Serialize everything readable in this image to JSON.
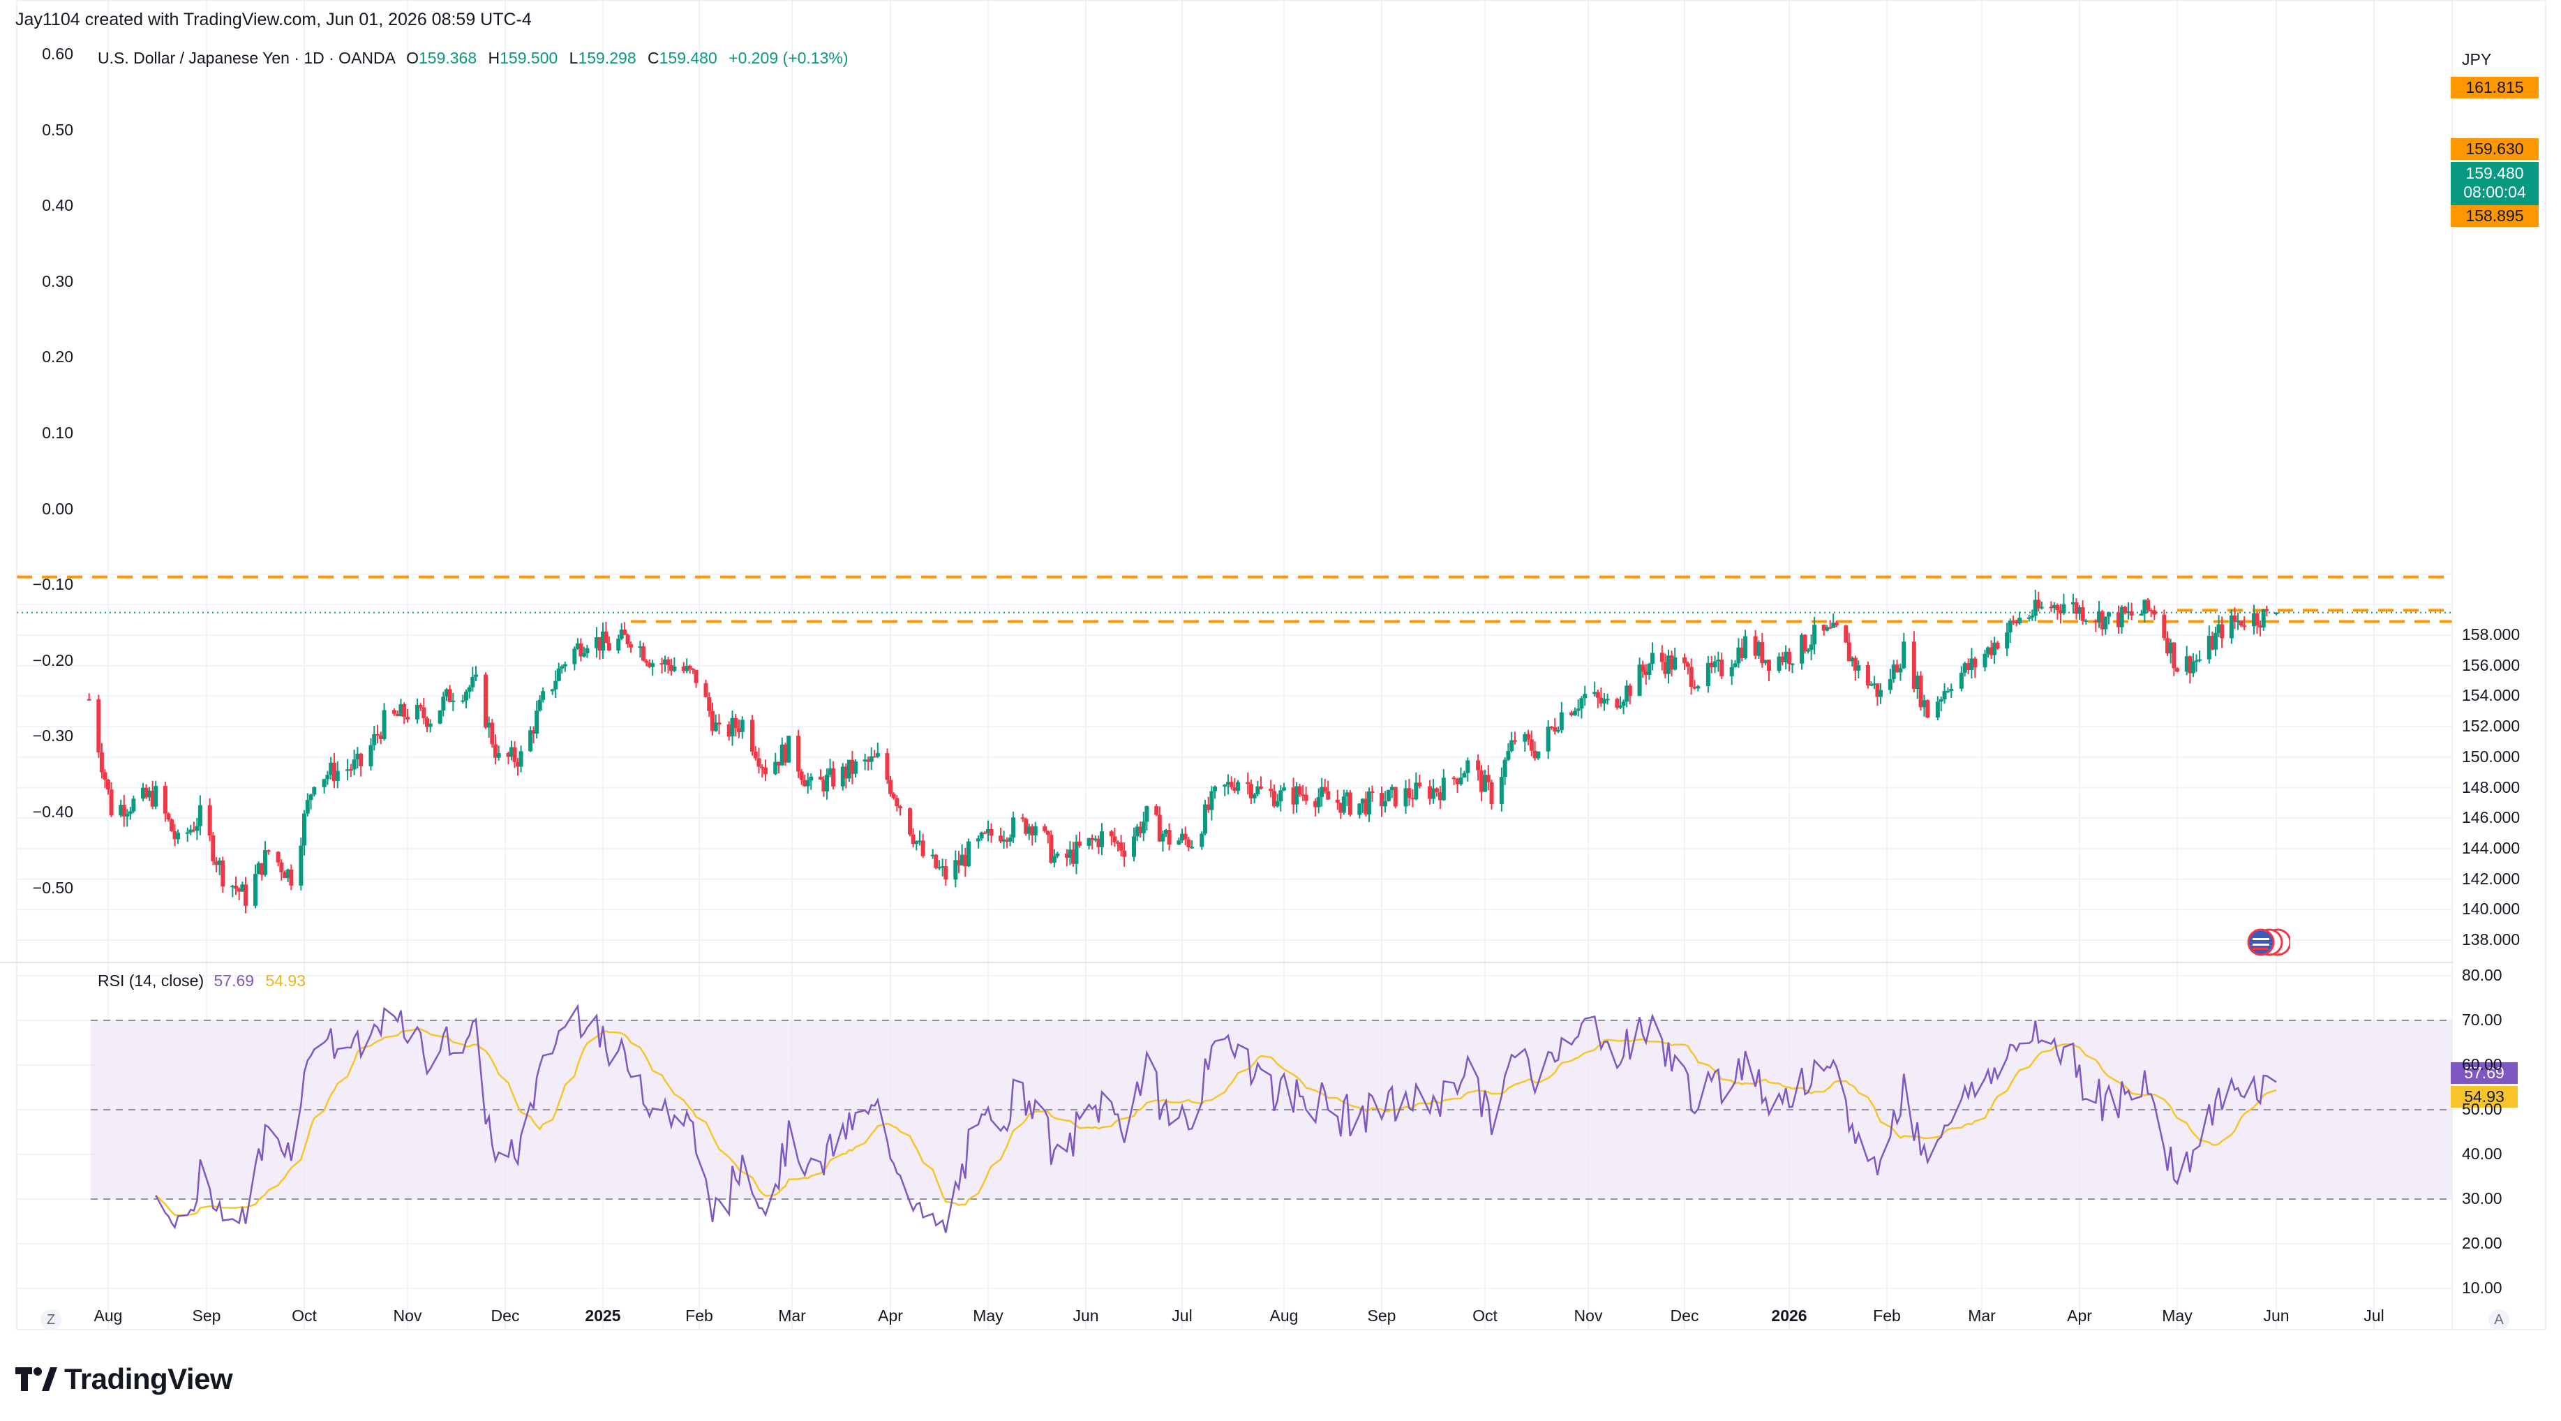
{
  "header": {
    "author_line": "Jay1104 created with TradingView.com, Jun 01, 2026 08:59 UTC-4"
  },
  "legend": {
    "symbol": "U.S. Dollar / Japanese Yen · 1D · OANDA",
    "o_label": "O",
    "o_value": "159.368",
    "h_label": "H",
    "h_value": "159.500",
    "l_label": "L",
    "l_value": "159.298",
    "c_label": "C",
    "c_value": "159.480",
    "change": "+0.209 (+0.13%)"
  },
  "currency": "JPY",
  "price_tags": {
    "level_top": "161.815",
    "level_upper": "159.630",
    "last_price": "159.480",
    "countdown": "08:00:04",
    "level_lower": "158.895"
  },
  "rsi_legend": {
    "label": "RSI (14, close)",
    "rsi_value": "57.69",
    "ma_value": "54.93"
  },
  "footer": {
    "brand": "TradingView",
    "zoom_button": "Z",
    "auto_button": "A"
  },
  "colors": {
    "up": "#089981",
    "down": "#f23645",
    "level_line": "#ff9800",
    "rsi_line": "#7e57c2",
    "rsi_ma": "#f7c52a",
    "rsi_band": "#ede7f6"
  },
  "chart_data": [
    {
      "type": "candlestick",
      "title": "",
      "y_unit": "JPY",
      "ylim": [
        137.5,
        163.0
      ],
      "right_axis_ticks": [
        "138.000",
        "140.000",
        "142.000",
        "144.000",
        "146.000",
        "148.000",
        "150.000",
        "152.000",
        "154.000",
        "156.000",
        "158.000"
      ],
      "left_axis_ticks": [
        "0.60",
        "0.50",
        "0.40",
        "0.30",
        "0.20",
        "0.10",
        "0.00",
        "−0.10",
        "−0.20",
        "−0.30",
        "−0.40",
        "−0.50"
      ],
      "x_ticks": [
        {
          "label": "Aug",
          "i": 0
        },
        {
          "label": "Sep",
          "i": 1
        },
        {
          "label": "Oct",
          "i": 2
        },
        {
          "label": "Nov",
          "i": 3
        },
        {
          "label": "Dec",
          "i": 4
        },
        {
          "label": "2025",
          "i": 5
        },
        {
          "label": "Feb",
          "i": 6
        },
        {
          "label": "Mar",
          "i": 7
        },
        {
          "label": "Apr",
          "i": 8
        },
        {
          "label": "May",
          "i": 9
        },
        {
          "label": "Jun",
          "i": 10
        },
        {
          "label": "Jul",
          "i": 11
        },
        {
          "label": "Aug",
          "i": 12
        },
        {
          "label": "Sep",
          "i": 13
        },
        {
          "label": "Oct",
          "i": 14
        },
        {
          "label": "Nov",
          "i": 15
        },
        {
          "label": "Dec",
          "i": 16
        },
        {
          "label": "2026",
          "i": 17
        },
        {
          "label": "Feb",
          "i": 18
        },
        {
          "label": "Mar",
          "i": 19
        },
        {
          "label": "Apr",
          "i": 20
        },
        {
          "label": "May",
          "i": 21
        },
        {
          "label": "Jun",
          "i": 22
        },
        {
          "label": "Jul",
          "i": 23
        }
      ],
      "horizontal_levels": [
        161.815,
        159.63,
        158.895
      ],
      "last_close": 159.48,
      "weekly_closes": [
        {
          "date": "2024-07-26",
          "close": 153.8
        },
        {
          "date": "2024-08-02",
          "close": 146.6
        },
        {
          "date": "2024-08-09",
          "close": 147.0
        },
        {
          "date": "2024-08-16",
          "close": 147.5
        },
        {
          "date": "2024-08-23",
          "close": 144.3
        },
        {
          "date": "2024-08-30",
          "close": 146.1
        },
        {
          "date": "2024-09-06",
          "close": 142.3
        },
        {
          "date": "2024-09-13",
          "close": 140.8
        },
        {
          "date": "2024-09-20",
          "close": 143.8
        },
        {
          "date": "2024-09-27",
          "close": 142.2
        },
        {
          "date": "2024-10-04",
          "close": 148.7
        },
        {
          "date": "2024-10-11",
          "close": 149.1
        },
        {
          "date": "2024-10-18",
          "close": 149.5
        },
        {
          "date": "2024-10-25",
          "close": 152.3
        },
        {
          "date": "2024-11-01",
          "close": 152.9
        },
        {
          "date": "2024-11-08",
          "close": 152.6
        },
        {
          "date": "2024-11-15",
          "close": 154.3
        },
        {
          "date": "2024-11-22",
          "close": 154.7
        },
        {
          "date": "2024-11-29",
          "close": 149.8
        },
        {
          "date": "2024-12-06",
          "close": 150.0
        },
        {
          "date": "2024-12-13",
          "close": 153.7
        },
        {
          "date": "2024-12-20",
          "close": 156.4
        },
        {
          "date": "2024-12-27",
          "close": 157.8
        },
        {
          "date": "2025-01-03",
          "close": 157.3
        },
        {
          "date": "2025-01-10",
          "close": 157.9
        },
        {
          "date": "2025-01-17",
          "close": 156.3
        },
        {
          "date": "2025-01-24",
          "close": 156.0
        },
        {
          "date": "2025-01-31",
          "close": 155.2
        },
        {
          "date": "2025-02-07",
          "close": 151.4
        },
        {
          "date": "2025-02-14",
          "close": 152.3
        },
        {
          "date": "2025-02-21",
          "close": 149.3
        },
        {
          "date": "2025-02-28",
          "close": 150.6
        },
        {
          "date": "2025-03-07",
          "close": 148.0
        },
        {
          "date": "2025-03-14",
          "close": 148.6
        },
        {
          "date": "2025-03-21",
          "close": 149.3
        },
        {
          "date": "2025-03-28",
          "close": 149.8
        },
        {
          "date": "2025-04-04",
          "close": 146.9
        },
        {
          "date": "2025-04-11",
          "close": 143.5
        },
        {
          "date": "2025-04-18",
          "close": 142.2
        },
        {
          "date": "2025-04-25",
          "close": 143.7
        },
        {
          "date": "2025-05-02",
          "close": 144.9
        },
        {
          "date": "2025-05-09",
          "close": 145.4
        },
        {
          "date": "2025-05-16",
          "close": 145.7
        },
        {
          "date": "2025-05-23",
          "close": 143.0
        },
        {
          "date": "2025-05-30",
          "close": 143.9
        },
        {
          "date": "2025-06-06",
          "close": 144.8
        },
        {
          "date": "2025-06-13",
          "close": 144.1
        },
        {
          "date": "2025-06-20",
          "close": 146.1
        },
        {
          "date": "2025-06-27",
          "close": 144.6
        },
        {
          "date": "2025-07-04",
          "close": 144.5
        },
        {
          "date": "2025-07-11",
          "close": 147.4
        },
        {
          "date": "2025-07-18",
          "close": 148.6
        },
        {
          "date": "2025-07-25",
          "close": 147.7
        },
        {
          "date": "2025-08-01",
          "close": 147.4
        },
        {
          "date": "2025-08-08",
          "close": 147.7
        },
        {
          "date": "2025-08-15",
          "close": 147.2
        },
        {
          "date": "2025-08-22",
          "close": 146.9
        },
        {
          "date": "2025-08-29",
          "close": 147.0
        },
        {
          "date": "2025-09-05",
          "close": 147.4
        },
        {
          "date": "2025-09-12",
          "close": 147.7
        },
        {
          "date": "2025-09-19",
          "close": 148.0
        },
        {
          "date": "2025-09-26",
          "close": 149.5
        },
        {
          "date": "2025-10-03",
          "close": 147.5
        },
        {
          "date": "2025-10-10",
          "close": 151.2
        },
        {
          "date": "2025-10-17",
          "close": 150.4
        },
        {
          "date": "2025-10-24",
          "close": 152.9
        },
        {
          "date": "2025-10-31",
          "close": 154.0
        },
        {
          "date": "2025-11-07",
          "close": 153.4
        },
        {
          "date": "2025-11-14",
          "close": 154.6
        },
        {
          "date": "2025-11-21",
          "close": 156.4
        },
        {
          "date": "2025-11-28",
          "close": 156.1
        },
        {
          "date": "2025-12-05",
          "close": 155.1
        },
        {
          "date": "2025-12-12",
          "close": 155.8
        },
        {
          "date": "2025-12-19",
          "close": 157.5
        },
        {
          "date": "2025-12-26",
          "close": 156.4
        },
        {
          "date": "2026-01-02",
          "close": 156.8
        },
        {
          "date": "2026-01-09",
          "close": 157.9
        },
        {
          "date": "2026-01-16",
          "close": 158.1
        },
        {
          "date": "2026-01-23",
          "close": 155.7
        },
        {
          "date": "2026-01-30",
          "close": 154.1
        },
        {
          "date": "2026-02-06",
          "close": 157.0
        },
        {
          "date": "2026-02-13",
          "close": 152.9
        },
        {
          "date": "2026-02-20",
          "close": 155.1
        },
        {
          "date": "2026-02-27",
          "close": 156.1
        },
        {
          "date": "2026-03-06",
          "close": 157.7
        },
        {
          "date": "2026-03-13",
          "close": 159.1
        },
        {
          "date": "2026-03-20",
          "close": 159.7
        },
        {
          "date": "2026-03-27",
          "close": 160.1
        },
        {
          "date": "2026-04-03",
          "close": 159.5
        },
        {
          "date": "2026-04-10",
          "close": 159.0
        },
        {
          "date": "2026-04-17",
          "close": 159.3
        },
        {
          "date": "2026-04-24",
          "close": 159.7
        },
        {
          "date": "2026-05-01",
          "close": 156.0
        },
        {
          "date": "2026-05-08",
          "close": 156.4
        },
        {
          "date": "2026-05-15",
          "close": 158.4
        },
        {
          "date": "2026-05-22",
          "close": 159.1
        },
        {
          "date": "2026-05-29",
          "close": 159.27
        },
        {
          "date": "2026-06-01",
          "close": 159.48
        }
      ]
    },
    {
      "type": "line",
      "title": "RSI (14, close)",
      "ylim": [
        5,
        82
      ],
      "y_ticks": [
        "10.00",
        "20.00",
        "30.00",
        "40.00",
        "50.00",
        "60.00",
        "70.00",
        "80.00"
      ],
      "bands": [
        30,
        50,
        70
      ],
      "series": [
        {
          "name": "RSI",
          "last": 57.69
        },
        {
          "name": "MA",
          "last": 54.93
        }
      ]
    }
  ]
}
